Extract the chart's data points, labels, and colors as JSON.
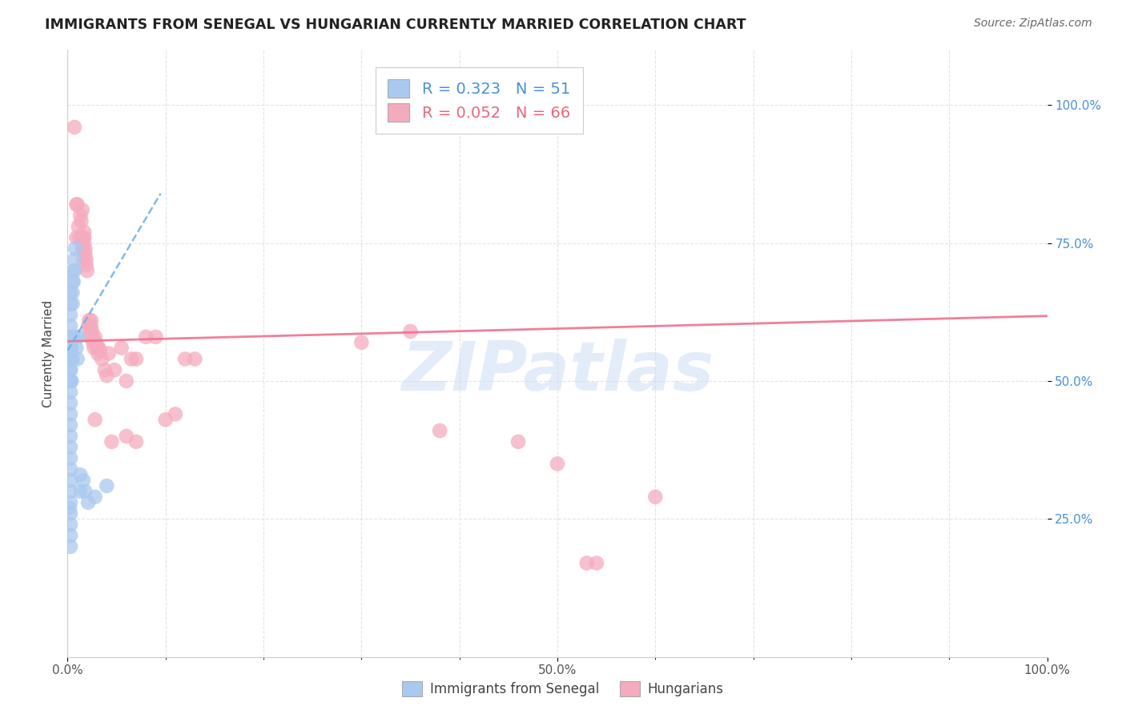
{
  "title": "IMMIGRANTS FROM SENEGAL VS HUNGARIAN CURRENTLY MARRIED CORRELATION CHART",
  "source": "Source: ZipAtlas.com",
  "ylabel": "Currently Married",
  "legend_blue_R": "0.323",
  "legend_blue_N": "51",
  "legend_pink_R": "0.052",
  "legend_pink_N": "66",
  "legend_label_blue": "Immigrants from Senegal",
  "legend_label_pink": "Hungarians",
  "blue_color": "#aac9f0",
  "pink_color": "#f5abbe",
  "blue_line_color": "#6aaee8",
  "pink_line_color": "#f07090",
  "watermark_text": "ZIPatlas",
  "ytick_vals": [
    0.25,
    0.5,
    0.75,
    1.0
  ],
  "xlim": [
    0.0,
    1.0
  ],
  "ylim": [
    0.0,
    1.1
  ],
  "blue_points": [
    [
      0.003,
      0.66
    ],
    [
      0.003,
      0.64
    ],
    [
      0.003,
      0.62
    ],
    [
      0.003,
      0.6
    ],
    [
      0.003,
      0.58
    ],
    [
      0.003,
      0.56
    ],
    [
      0.003,
      0.54
    ],
    [
      0.003,
      0.52
    ],
    [
      0.003,
      0.5
    ],
    [
      0.003,
      0.48
    ],
    [
      0.003,
      0.46
    ],
    [
      0.003,
      0.44
    ],
    [
      0.003,
      0.42
    ],
    [
      0.003,
      0.4
    ],
    [
      0.003,
      0.38
    ],
    [
      0.003,
      0.36
    ],
    [
      0.003,
      0.34
    ],
    [
      0.003,
      0.32
    ],
    [
      0.003,
      0.3
    ],
    [
      0.003,
      0.28
    ],
    [
      0.003,
      0.26
    ],
    [
      0.003,
      0.24
    ],
    [
      0.003,
      0.22
    ],
    [
      0.003,
      0.2
    ],
    [
      0.004,
      0.56
    ],
    [
      0.004,
      0.54
    ],
    [
      0.005,
      0.68
    ],
    [
      0.005,
      0.66
    ],
    [
      0.005,
      0.64
    ],
    [
      0.005,
      0.58
    ],
    [
      0.005,
      0.54
    ],
    [
      0.006,
      0.7
    ],
    [
      0.006,
      0.68
    ],
    [
      0.007,
      0.72
    ],
    [
      0.007,
      0.7
    ],
    [
      0.008,
      0.74
    ],
    [
      0.009,
      0.58
    ],
    [
      0.009,
      0.56
    ],
    [
      0.01,
      0.54
    ],
    [
      0.011,
      0.58
    ],
    [
      0.013,
      0.33
    ],
    [
      0.013,
      0.3
    ],
    [
      0.016,
      0.32
    ],
    [
      0.018,
      0.3
    ],
    [
      0.021,
      0.28
    ],
    [
      0.028,
      0.29
    ],
    [
      0.04,
      0.31
    ],
    [
      0.003,
      0.52
    ],
    [
      0.003,
      0.5
    ],
    [
      0.004,
      0.5
    ],
    [
      0.002,
      0.27
    ]
  ],
  "pink_points": [
    [
      0.007,
      0.96
    ],
    [
      0.009,
      0.82
    ],
    [
      0.009,
      0.76
    ],
    [
      0.01,
      0.82
    ],
    [
      0.011,
      0.78
    ],
    [
      0.012,
      0.76
    ],
    [
      0.013,
      0.8
    ],
    [
      0.014,
      0.79
    ],
    [
      0.015,
      0.81
    ],
    [
      0.015,
      0.76
    ],
    [
      0.015,
      0.74
    ],
    [
      0.016,
      0.76
    ],
    [
      0.016,
      0.74
    ],
    [
      0.016,
      0.72
    ],
    [
      0.017,
      0.77
    ],
    [
      0.017,
      0.76
    ],
    [
      0.017,
      0.75
    ],
    [
      0.018,
      0.74
    ],
    [
      0.018,
      0.73
    ],
    [
      0.019,
      0.72
    ],
    [
      0.019,
      0.71
    ],
    [
      0.02,
      0.7
    ],
    [
      0.021,
      0.6
    ],
    [
      0.022,
      0.61
    ],
    [
      0.022,
      0.6
    ],
    [
      0.023,
      0.59
    ],
    [
      0.023,
      0.58
    ],
    [
      0.024,
      0.61
    ],
    [
      0.024,
      0.6
    ],
    [
      0.025,
      0.59
    ],
    [
      0.025,
      0.58
    ],
    [
      0.026,
      0.57
    ],
    [
      0.027,
      0.56
    ],
    [
      0.028,
      0.58
    ],
    [
      0.029,
      0.57
    ],
    [
      0.03,
      0.56
    ],
    [
      0.031,
      0.55
    ],
    [
      0.032,
      0.56
    ],
    [
      0.033,
      0.555
    ],
    [
      0.035,
      0.54
    ],
    [
      0.038,
      0.52
    ],
    [
      0.04,
      0.51
    ],
    [
      0.042,
      0.55
    ],
    [
      0.048,
      0.52
    ],
    [
      0.055,
      0.56
    ],
    [
      0.06,
      0.5
    ],
    [
      0.065,
      0.54
    ],
    [
      0.07,
      0.54
    ],
    [
      0.08,
      0.58
    ],
    [
      0.09,
      0.58
    ],
    [
      0.1,
      0.43
    ],
    [
      0.11,
      0.44
    ],
    [
      0.12,
      0.54
    ],
    [
      0.13,
      0.54
    ],
    [
      0.028,
      0.43
    ],
    [
      0.045,
      0.39
    ],
    [
      0.06,
      0.4
    ],
    [
      0.07,
      0.39
    ],
    [
      0.3,
      0.57
    ],
    [
      0.35,
      0.59
    ],
    [
      0.38,
      0.41
    ],
    [
      0.46,
      0.39
    ],
    [
      0.5,
      0.35
    ],
    [
      0.53,
      0.17
    ],
    [
      0.54,
      0.17
    ],
    [
      0.6,
      0.29
    ]
  ],
  "blue_line_x": [
    0.0,
    0.095
  ],
  "blue_line_y": [
    0.555,
    0.84
  ],
  "pink_line_x": [
    0.0,
    1.0
  ],
  "pink_line_y": [
    0.572,
    0.618
  ]
}
